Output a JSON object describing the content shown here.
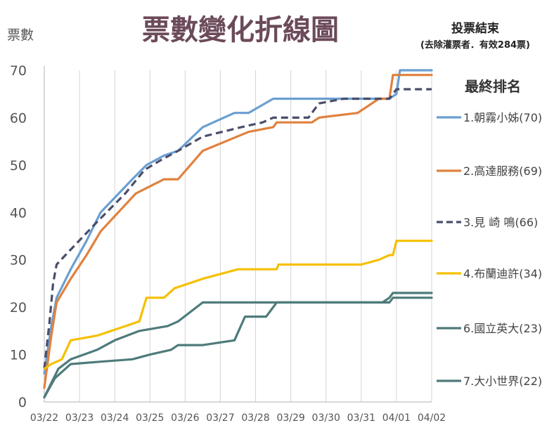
{
  "chart_data": {
    "type": "line",
    "title": "票數變化折線圖",
    "ylabel": "票數",
    "xlabel": "",
    "note_title": "投票結束",
    "note_sub": "(去除灌票者．有效284票)",
    "legend_title": "最終排名",
    "ylim": [
      0,
      70
    ],
    "yticks": [
      0,
      10,
      20,
      30,
      40,
      50,
      60,
      70
    ],
    "xlim": [
      0,
      11
    ],
    "xticks": [
      "03/22",
      "03/23",
      "03/24",
      "03/25",
      "03/26",
      "03/27",
      "03/28",
      "03/29",
      "03/30",
      "03/31",
      "04/01",
      "04/02"
    ],
    "grid": "vertical",
    "legend_position": "right",
    "series": [
      {
        "name": "1.朝霧小姊(70)",
        "color": "#6a9fd2",
        "dash": false,
        "points": [
          [
            0,
            6
          ],
          [
            0.2,
            16
          ],
          [
            0.35,
            22
          ],
          [
            0.75,
            28
          ],
          [
            1.2,
            34
          ],
          [
            1.6,
            40
          ],
          [
            2.5,
            47
          ],
          [
            2.9,
            50
          ],
          [
            3.4,
            52
          ],
          [
            3.8,
            53
          ],
          [
            4.5,
            58
          ],
          [
            5.4,
            61
          ],
          [
            5.8,
            61
          ],
          [
            6.5,
            64
          ],
          [
            7.5,
            64
          ],
          [
            9.0,
            64
          ],
          [
            9.8,
            64
          ],
          [
            10.0,
            65
          ],
          [
            10.1,
            70
          ],
          [
            11.0,
            70
          ]
        ]
      },
      {
        "name": "2.高達服務(69)",
        "color": "#e0813e",
        "dash": false,
        "points": [
          [
            0,
            3
          ],
          [
            0.2,
            14
          ],
          [
            0.35,
            21
          ],
          [
            0.75,
            26
          ],
          [
            1.2,
            31
          ],
          [
            1.6,
            36
          ],
          [
            2.6,
            44
          ],
          [
            3.4,
            47
          ],
          [
            3.8,
            47
          ],
          [
            4.5,
            53
          ],
          [
            5.8,
            57
          ],
          [
            6.5,
            58
          ],
          [
            6.6,
            59
          ],
          [
            7.6,
            59
          ],
          [
            7.8,
            60
          ],
          [
            8.9,
            61
          ],
          [
            9.5,
            64
          ],
          [
            9.8,
            64
          ],
          [
            9.9,
            69
          ],
          [
            11.0,
            69
          ]
        ]
      },
      {
        "name": "3.見 崎 鳴(66)",
        "color": "#4a4e6a",
        "dash": true,
        "points": [
          [
            0,
            7
          ],
          [
            0.15,
            17
          ],
          [
            0.25,
            25
          ],
          [
            0.35,
            29
          ],
          [
            0.6,
            31
          ],
          [
            1.5,
            38
          ],
          [
            2.3,
            44
          ],
          [
            2.85,
            49
          ],
          [
            3.3,
            51
          ],
          [
            3.8,
            53
          ],
          [
            4.5,
            56
          ],
          [
            5.6,
            58
          ],
          [
            6.2,
            59
          ],
          [
            6.5,
            60
          ],
          [
            7.5,
            60
          ],
          [
            7.8,
            63
          ],
          [
            8.5,
            64
          ],
          [
            9.8,
            64
          ],
          [
            10.0,
            66
          ],
          [
            11.0,
            66
          ]
        ]
      },
      {
        "name": "4.布蘭迪許(34)",
        "color": "#f5c000",
        "dash": false,
        "points": [
          [
            0,
            7
          ],
          [
            0.2,
            8
          ],
          [
            0.5,
            9
          ],
          [
            0.75,
            13
          ],
          [
            1.5,
            14
          ],
          [
            2.3,
            16
          ],
          [
            2.7,
            17
          ],
          [
            2.9,
            22
          ],
          [
            3.4,
            22
          ],
          [
            3.7,
            24
          ],
          [
            4.5,
            26
          ],
          [
            5.5,
            28
          ],
          [
            6.3,
            28
          ],
          [
            6.6,
            28
          ],
          [
            6.65,
            29
          ],
          [
            8.0,
            29
          ],
          [
            9.0,
            29
          ],
          [
            9.5,
            30
          ],
          [
            9.8,
            31
          ],
          [
            9.9,
            31
          ],
          [
            10.0,
            34
          ],
          [
            11.0,
            34
          ]
        ]
      },
      {
        "name": "6.國立英大(23)",
        "color": "#4e7b7a",
        "dash": false,
        "points": [
          [
            0,
            1
          ],
          [
            0.4,
            7
          ],
          [
            0.75,
            9
          ],
          [
            1.5,
            11
          ],
          [
            2.0,
            13
          ],
          [
            2.7,
            15
          ],
          [
            3.5,
            16
          ],
          [
            3.8,
            17
          ],
          [
            4.5,
            21
          ],
          [
            6.3,
            21
          ],
          [
            7.5,
            21
          ],
          [
            8.5,
            21
          ],
          [
            9.6,
            21
          ],
          [
            9.8,
            22
          ],
          [
            9.9,
            23
          ],
          [
            11.0,
            23
          ]
        ]
      },
      {
        "name": "7.大小世界(22)",
        "color": "#4e7b7a",
        "dash": false,
        "points": [
          [
            0,
            1
          ],
          [
            0.3,
            5
          ],
          [
            0.75,
            8
          ],
          [
            1.6,
            8.5
          ],
          [
            2.5,
            9
          ],
          [
            3.0,
            10
          ],
          [
            3.6,
            11
          ],
          [
            3.8,
            12
          ],
          [
            4.5,
            12
          ],
          [
            5.4,
            13
          ],
          [
            5.7,
            18
          ],
          [
            6.3,
            18
          ],
          [
            6.6,
            21
          ],
          [
            8.5,
            21
          ],
          [
            9.6,
            21
          ],
          [
            9.8,
            21
          ],
          [
            9.9,
            22
          ],
          [
            11.0,
            22
          ]
        ]
      }
    ]
  }
}
